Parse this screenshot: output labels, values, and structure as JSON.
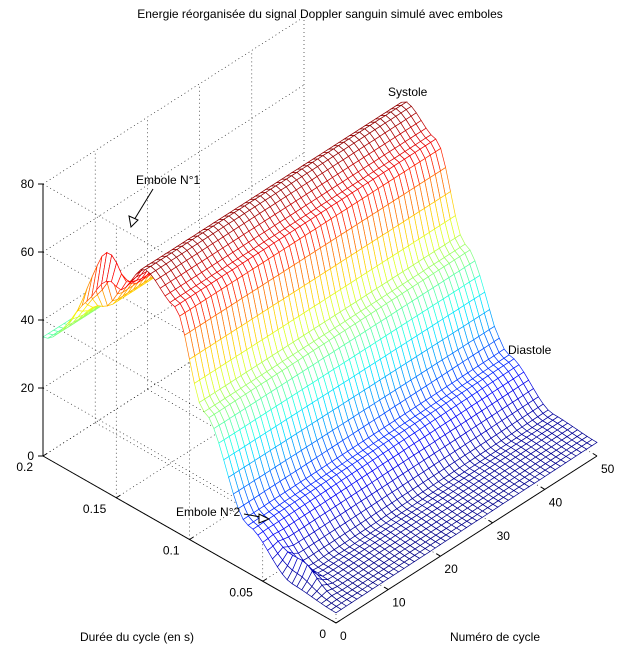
{
  "chart_data": {
    "type": "surface",
    "title": "Energie réorganisée du signal Doppler sanguin simulé avec emboles",
    "xlabel": "Numéro de cycle",
    "ylabel": "Durée du cycle (en s)",
    "zlabel": "",
    "xlim": [
      0,
      50
    ],
    "ylim": [
      0,
      0.2
    ],
    "zlim": [
      0,
      80
    ],
    "x_ticks": [
      0,
      10,
      20,
      30,
      40,
      50
    ],
    "y_ticks": [
      0,
      0.05,
      0.1,
      0.15,
      0.2
    ],
    "z_ticks": [
      0,
      20,
      40,
      60,
      80
    ],
    "y_tick_labels": [
      "0",
      "0.05",
      "0.1",
      "0.15",
      "0.2"
    ],
    "grid": true,
    "colormap": "jet",
    "profile_along_duration": {
      "duration_s": [
        0,
        0.03,
        0.06,
        0.09,
        0.11,
        0.13,
        0.15,
        0.17,
        0.2
      ],
      "energy": [
        3,
        4,
        14,
        40,
        66,
        72,
        60,
        48,
        35
      ]
    },
    "emboles": [
      {
        "label": "Embole N°1",
        "cycle": 1,
        "duration_s": 0.163,
        "energy_peak": 67
      },
      {
        "label": "Embole N°2",
        "cycle": 2,
        "duration_s": 0.03,
        "energy_peak": 9
      }
    ],
    "annotations": {
      "systole": "Systole",
      "diastole": "Diastole",
      "embole1": "Embole N°1",
      "embole2": "Embole N°2"
    },
    "colors": {
      "low": "#00008f",
      "high": "#800000",
      "grid_line": "#000000"
    }
  }
}
